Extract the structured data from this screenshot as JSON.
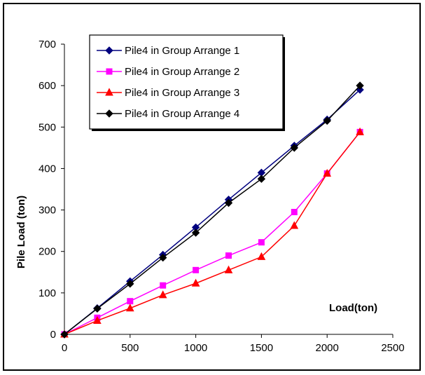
{
  "chart_data": {
    "type": "line",
    "title": "",
    "xlabel": "Load(ton)",
    "ylabel": "Pile Load (ton)",
    "xlim": [
      0,
      2500
    ],
    "ylim": [
      0,
      700
    ],
    "xticks": [
      0,
      500,
      1000,
      1500,
      2000,
      2500
    ],
    "yticks": [
      0,
      100,
      200,
      300,
      400,
      500,
      600,
      700
    ],
    "grid": false,
    "legend_position": "top-left",
    "x": [
      0,
      250,
      500,
      750,
      1000,
      1250,
      1500,
      1750,
      2000,
      2250
    ],
    "series": [
      {
        "name": "Pile4 in  Group Arrange 1",
        "color": "#00007f",
        "marker": "diamond",
        "values": [
          0,
          63,
          128,
          192,
          258,
          325,
          390,
          455,
          518,
          590
        ]
      },
      {
        "name": "Pile4 in  Group Arrange 2",
        "color": "#ff00ff",
        "marker": "square",
        "values": [
          0,
          40,
          80,
          118,
          155,
          190,
          222,
          295,
          388,
          488
        ]
      },
      {
        "name": "Pile4 in  Group Arrange 3",
        "color": "#ff0000",
        "marker": "triangle",
        "values": [
          0,
          33,
          63,
          95,
          123,
          155,
          187,
          262,
          388,
          488
        ]
      },
      {
        "name": "Pile4 in  Group Arrange 4",
        "color": "#000000",
        "marker": "diamond",
        "values": [
          0,
          62,
          122,
          185,
          245,
          317,
          375,
          450,
          515,
          600
        ]
      }
    ]
  }
}
